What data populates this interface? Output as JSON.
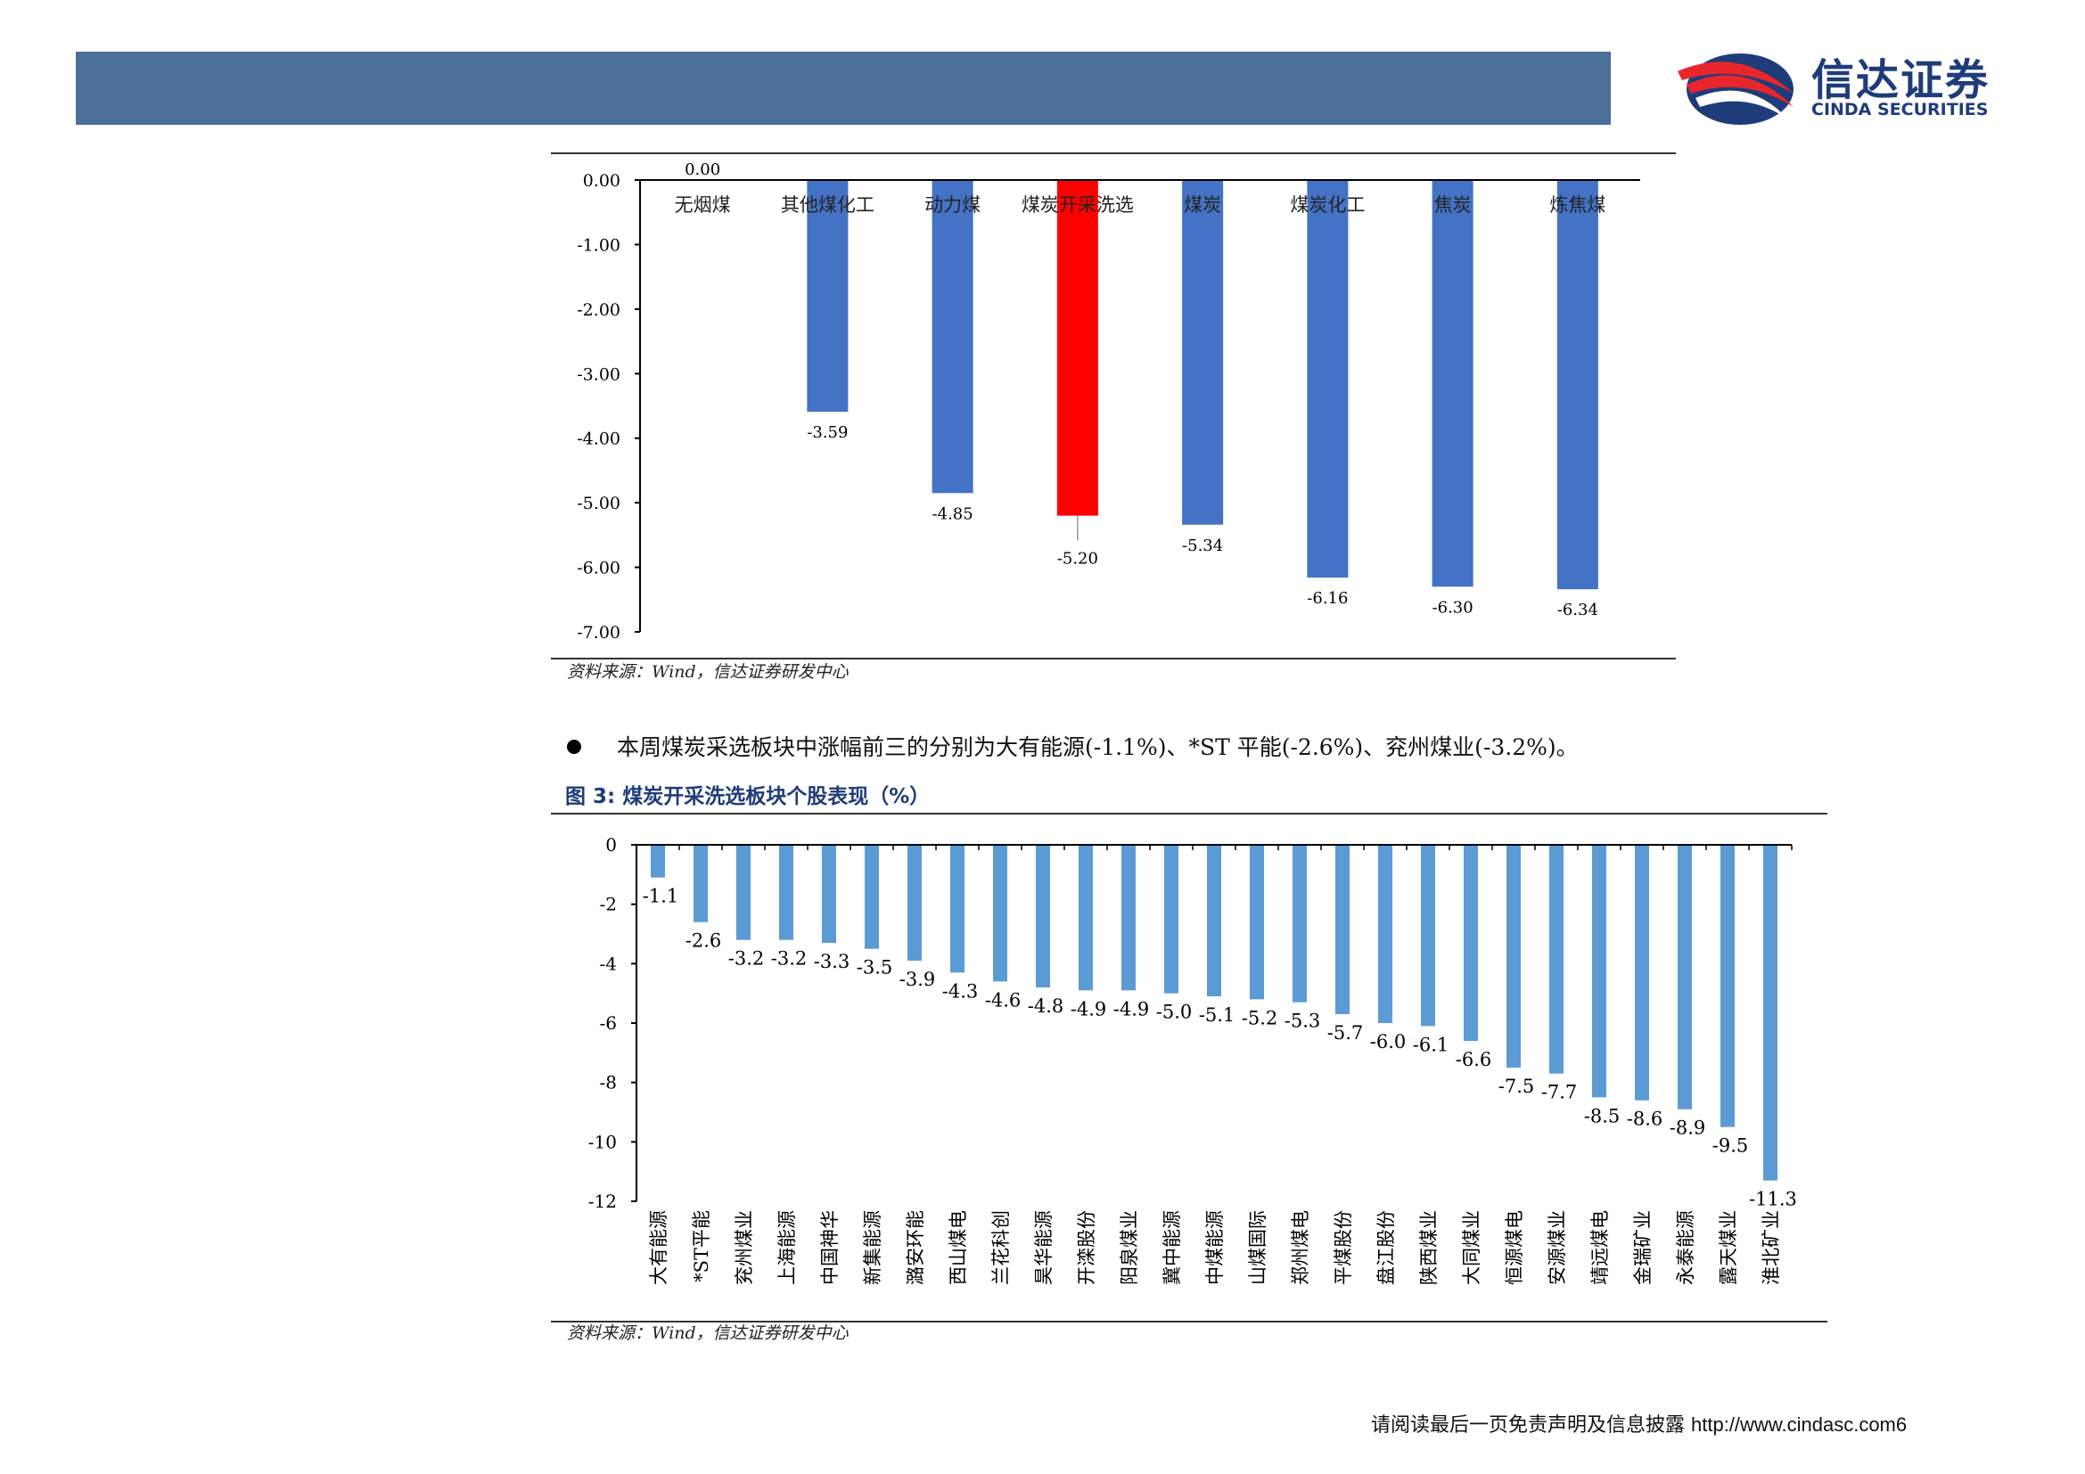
{
  "header": {
    "logo_cn": "信达证券",
    "logo_en": "CINDA SECURITIES"
  },
  "source_note_1": "资料来源：Wind，信达证券研发中心",
  "source_note_2": "资料来源：Wind，信达证券研发中心",
  "bullet": "本周煤炭采选板块中涨幅前三的分别为大有能源(-1.1%)、*ST 平能(-2.6%)、兖州煤业(-3.2%)。",
  "figure3_title": "图 3:  煤炭开采洗选板块个股表现（%）",
  "footer": {
    "disclaimer": "请阅读最后一页免责声明及信息披露",
    "url": "http://www.cindasc.com",
    "page": "6"
  },
  "colors": {
    "bar_blue": "#4472c4",
    "bar_red": "#ff0000",
    "bar_light_blue": "#5b9bd5",
    "header": "#4c6f97"
  },
  "chart_data": [
    {
      "type": "bar",
      "categories": [
        "无烟煤",
        "其他煤化工",
        "动力煤",
        "煤炭开采洗选",
        "煤炭",
        "煤炭化工",
        "焦炭",
        "炼焦煤"
      ],
      "values": [
        0.0,
        -3.59,
        -4.85,
        -5.2,
        -5.34,
        -6.16,
        -6.3,
        -6.34
      ],
      "data_labels": [
        "0.00",
        "-3.59",
        "-4.85",
        "-5.20",
        "-5.34",
        "-6.16",
        "-6.30",
        "-6.34"
      ],
      "highlight_index": 3,
      "ylim": [
        -7,
        0
      ],
      "yticks": [
        "0.00",
        "-1.00",
        "-2.00",
        "-3.00",
        "-4.00",
        "-5.00",
        "-6.00",
        "-7.00"
      ],
      "title": "",
      "xlabel": "",
      "ylabel": ""
    },
    {
      "type": "bar",
      "categories": [
        "大有能源",
        "*ST平能",
        "兖州煤业",
        "上海能源",
        "中国神华",
        "新集能源",
        "潞安环能",
        "西山煤电",
        "兰花科创",
        "昊华能源",
        "开滦股份",
        "阳泉煤业",
        "冀中能源",
        "中煤能源",
        "山煤国际",
        "郑州煤电",
        "平煤股份",
        "盘江股份",
        "陕西煤业",
        "大同煤业",
        "恒源煤电",
        "安源煤业",
        "靖远煤电",
        "金瑞矿业",
        "永泰能源",
        "露天煤业",
        "淮北矿业"
      ],
      "values": [
        -1.1,
        -2.6,
        -3.2,
        -3.2,
        -3.3,
        -3.5,
        -3.9,
        -4.3,
        -4.6,
        -4.8,
        -4.9,
        -4.9,
        -5.0,
        -5.1,
        -5.2,
        -5.3,
        -5.7,
        -6.0,
        -6.1,
        -6.6,
        -7.5,
        -7.7,
        -8.5,
        -8.6,
        -8.9,
        -9.5,
        -11.3
      ],
      "data_labels": [
        "-1.1",
        "-2.6",
        "-3.2",
        "-3.2",
        "-3.3",
        "-3.5",
        "-3.9",
        "-4.3",
        "-4.6",
        "-4.8",
        "-4.9",
        "-4.9",
        "-5.0",
        "-5.1",
        "-5.2",
        "-5.3",
        "-5.7",
        "-6.0",
        "-6.1",
        "-6.6",
        "-7.5",
        "-7.7",
        "-8.5",
        "-8.6",
        "-8.9",
        "-9.5",
        "-11.3"
      ],
      "ylim": [
        -12,
        0
      ],
      "yticks": [
        "0",
        "-2",
        "-4",
        "-6",
        "-8",
        "-10",
        "-12"
      ],
      "title": "",
      "xlabel": "",
      "ylabel": ""
    }
  ]
}
